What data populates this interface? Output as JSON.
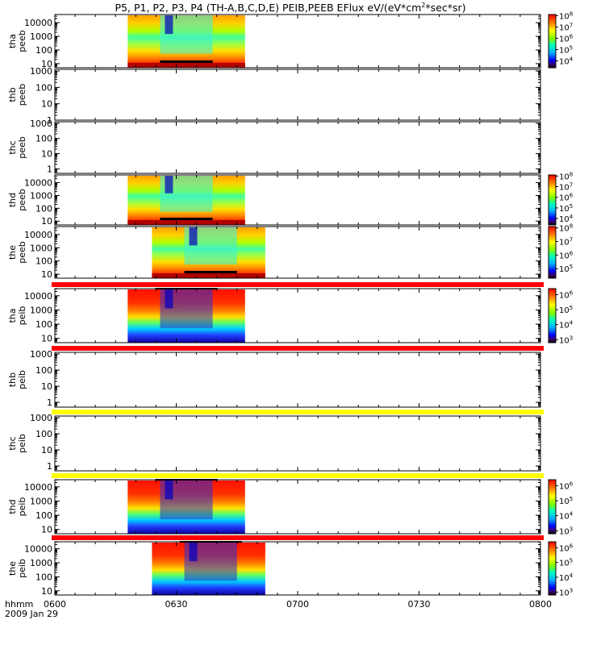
{
  "chart_data": {
    "type": "heatmap",
    "title": "P5, P1, P2, P3, P4 (TH-A,B,C,D,E) PEIB,PEEB EFlux eV/(eV*cm",
    "title_sup": "2",
    "title_end": "*sec*sr)",
    "x": {
      "ticks": [
        "0600",
        "0630",
        "0700",
        "0730",
        "0800"
      ],
      "range_minutes": [
        0,
        120
      ],
      "corner_label": "hhmm",
      "date_label": "2009 Jan 29"
    },
    "panels": [
      {
        "name": "peeb-tha",
        "probe": "tha",
        "species": "peeb",
        "y_tick_labels": [
          "10",
          "100",
          "1000",
          "10000"
        ],
        "ylog": [
          0.7,
          4.6
        ],
        "coverage_minutes": [
          18,
          47
        ],
        "colorbar": {
          "log_range": [
            3.4,
            8.1
          ],
          "labels": [
            {
              "b": "10",
              "e": "4"
            },
            {
              "b": "10",
              "e": "5"
            },
            {
              "b": "10",
              "e": "6"
            },
            {
              "b": "10",
              "e": "7"
            },
            {
              "b": "10",
              "e": "8"
            }
          ]
        }
      },
      {
        "name": "peeb-thb",
        "probe": "thb",
        "species": "peeb",
        "y_tick_labels": [
          "1",
          "10",
          "100",
          "1000"
        ],
        "ylog": [
          0,
          3.1
        ],
        "coverage_minutes": []
      },
      {
        "name": "peeb-thc",
        "probe": "thc",
        "species": "peeb",
        "y_tick_labels": [
          "1",
          "10",
          "100",
          "1000"
        ],
        "ylog": [
          -0.3,
          3.1
        ],
        "coverage_minutes": []
      },
      {
        "name": "peeb-thd",
        "probe": "thd",
        "species": "peeb",
        "y_tick_labels": [
          "10",
          "100",
          "1000",
          "10000"
        ],
        "ylog": [
          0.7,
          4.6
        ],
        "coverage_minutes": [
          18,
          47
        ],
        "colorbar": {
          "log_range": [
            3.4,
            8.1
          ],
          "labels": [
            {
              "b": "10",
              "e": "4"
            },
            {
              "b": "10",
              "e": "5"
            },
            {
              "b": "10",
              "e": "6"
            },
            {
              "b": "10",
              "e": "7"
            },
            {
              "b": "10",
              "e": "8"
            }
          ]
        }
      },
      {
        "name": "peeb-the",
        "probe": "the",
        "species": "peeb",
        "y_tick_labels": [
          "10",
          "100",
          "1000",
          "10000"
        ],
        "ylog": [
          0.7,
          4.6
        ],
        "coverage_minutes": [
          24,
          52
        ],
        "colorbar": {
          "log_range": [
            4.3,
            8.1
          ],
          "labels": [
            {
              "b": "10",
              "e": "5"
            },
            {
              "b": "10",
              "e": "6"
            },
            {
              "b": "10",
              "e": "7"
            },
            {
              "b": "10",
              "e": "8"
            }
          ]
        }
      },
      {
        "name": "peib-tha",
        "probe": "tha",
        "species": "peib",
        "y_tick_labels": [
          "10",
          "100",
          "1000",
          "10000"
        ],
        "ylog": [
          0.7,
          4.5
        ],
        "coverage_minutes": [
          18,
          47
        ],
        "bar_color": "#ff0000",
        "colorbar": {
          "log_range": [
            2.8,
            6.4
          ],
          "labels": [
            {
              "b": "10",
              "e": "3"
            },
            {
              "b": "10",
              "e": "4"
            },
            {
              "b": "10",
              "e": "5"
            },
            {
              "b": "10",
              "e": "6"
            }
          ]
        }
      },
      {
        "name": "peib-thb",
        "probe": "thb",
        "species": "peib",
        "y_tick_labels": [
          "1",
          "10",
          "100",
          "1000"
        ],
        "ylog": [
          -0.3,
          3.1
        ],
        "coverage_minutes": [],
        "bar_color": "#ffff00"
      },
      {
        "name": "peib-thc",
        "probe": "thc",
        "species": "peib",
        "y_tick_labels": [
          "1",
          "10",
          "100",
          "1000"
        ],
        "ylog": [
          -0.3,
          3.1
        ],
        "coverage_minutes": [],
        "bar_color": "#ffff00"
      },
      {
        "name": "peib-thd",
        "probe": "thd",
        "species": "peib",
        "y_tick_labels": [
          "10",
          "100",
          "1000",
          "10000"
        ],
        "ylog": [
          0.7,
          4.5
        ],
        "coverage_minutes": [
          18,
          47
        ],
        "bar_color": "#ff0000",
        "colorbar": {
          "log_range": [
            2.8,
            6.4
          ],
          "labels": [
            {
              "b": "10",
              "e": "3"
            },
            {
              "b": "10",
              "e": "4"
            },
            {
              "b": "10",
              "e": "5"
            },
            {
              "b": "10",
              "e": "6"
            }
          ]
        }
      },
      {
        "name": "peib-the",
        "probe": "the",
        "species": "peib",
        "y_tick_labels": [
          "10",
          "100",
          "1000",
          "10000"
        ],
        "ylog": [
          0.7,
          4.5
        ],
        "coverage_minutes": [
          24,
          52
        ],
        "bar_color": "#ff0000",
        "colorbar": {
          "log_range": [
            2.8,
            6.4
          ],
          "labels": [
            {
              "b": "10",
              "e": "3"
            },
            {
              "b": "10",
              "e": "4"
            },
            {
              "b": "10",
              "e": "5"
            },
            {
              "b": "10",
              "e": "6"
            }
          ]
        }
      }
    ]
  }
}
